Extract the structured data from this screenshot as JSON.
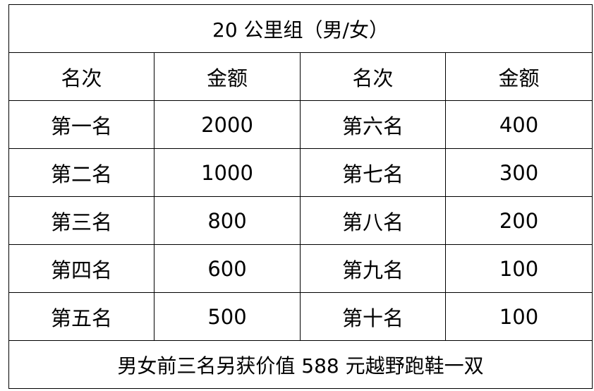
{
  "title": "20 公里组（男/女）",
  "headers": [
    "名次",
    "金额",
    "名次",
    "金额"
  ],
  "rows": [
    [
      "第一名",
      "2000",
      "第六名",
      "400"
    ],
    [
      "第二名",
      "1000",
      "第七名",
      "300"
    ],
    [
      "第三名",
      "800",
      "第八名",
      "200"
    ],
    [
      "第四名",
      "600",
      "第九名",
      "100"
    ],
    [
      "第五名",
      "500",
      "第十名",
      "100"
    ]
  ],
  "footer": "男女前三名另获价值 588 元越野跑鞋一双"
}
